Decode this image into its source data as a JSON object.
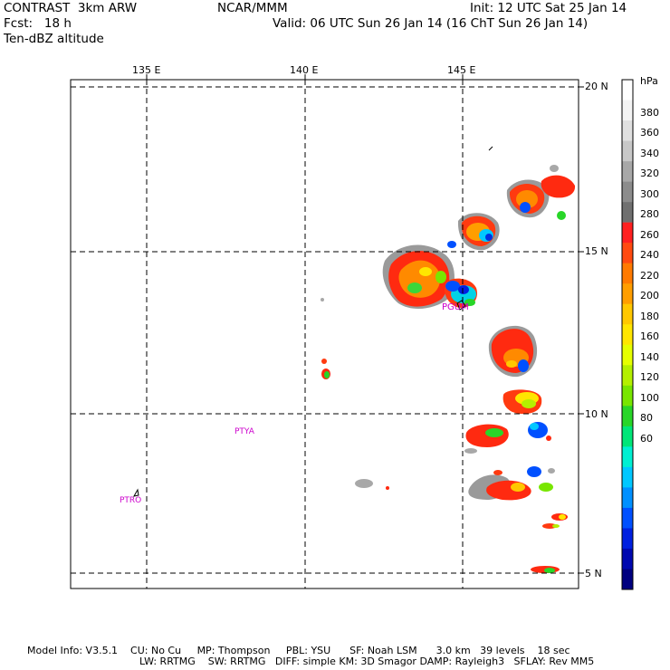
{
  "header": {
    "model": "CONTRAST  3km ARW",
    "forecast": "Fcst:   18 h",
    "field": "Ten-dBZ altitude",
    "center": "NCAR/MMM",
    "init": "Init: 12 UTC Sat 25 Jan 14",
    "valid": "Valid: 06 UTC Sun 26 Jan 14 (16 ChT Sun 26 Jan 14)"
  },
  "axes": {
    "lon_labels": [
      "135 E",
      "140 E",
      "145 E"
    ],
    "lat_labels": [
      "20 N",
      "15 N",
      "10 N",
      "5 N"
    ]
  },
  "stations": [
    {
      "id": "PGUM",
      "label": "PGUM"
    },
    {
      "id": "PTYA",
      "label": "PTYA"
    },
    {
      "id": "PTRO",
      "label": "PTRO"
    }
  ],
  "colorbar": {
    "unit": "hPa",
    "labels": [
      "380",
      "360",
      "340",
      "320",
      "300",
      "280",
      "260",
      "240",
      "220",
      "200",
      "180",
      "160",
      "140",
      "120",
      "100",
      "80",
      "60"
    ]
  },
  "footer": {
    "line1": "Model Info: V3.5.1    CU: No Cu     MP: Thompson     PBL: YSU      SF: Noah LSM      3.0 km   39 levels    18 sec",
    "line2": "LW: RRTMG    SW: RRTMG   DIFF: simple KM: 3D Smagor DAMP: Rayleigh3   SFLAY: Rev MM5"
  },
  "colors": {
    "label_magenta": "#cc00cc",
    "grid": "#000000",
    "scale": [
      "#ffffff",
      "#f4f4f4",
      "#e0e0e0",
      "#c8c8c8",
      "#a8a8a8",
      "#8c8c8c",
      "#707070",
      "#ff2020",
      "#ff4a10",
      "#ff7a00",
      "#ff9e00",
      "#ffc800",
      "#ffe600",
      "#e6ff00",
      "#b4f000",
      "#78e600",
      "#28d628",
      "#00e678",
      "#00f0d2",
      "#00c8ff",
      "#0090ff",
      "#0050ff",
      "#0020e0",
      "#0008b0",
      "#000080"
    ]
  }
}
